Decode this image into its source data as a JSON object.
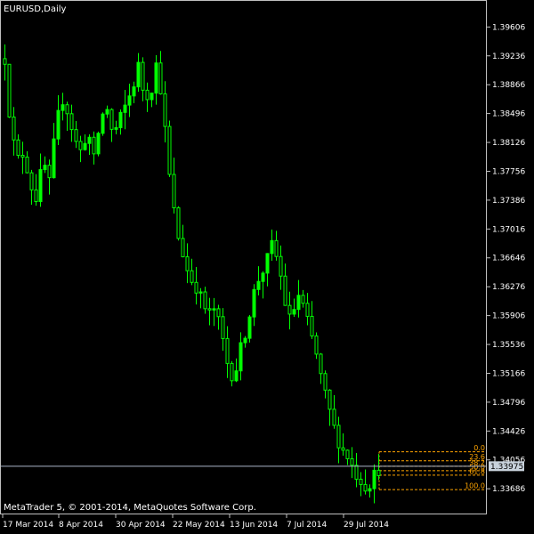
{
  "window": {
    "title": "EURUSD,Daily"
  },
  "footer": {
    "copyright": "MetaTrader 5, © 2001-2014, MetaQuotes Software Corp."
  },
  "colors": {
    "background": "#000000",
    "candle": "#00ff00",
    "axis": "#c0c0c0",
    "text": "#ffffff",
    "fib_line": "#ffa500",
    "fib_text": "#ffa500",
    "price_line": "#aab4c8",
    "price_label_bg": "#c8d2dc",
    "price_label_text": "#000000"
  },
  "chart_data": {
    "type": "candlestick",
    "symbol": "EURUSD",
    "timeframe": "Daily",
    "y_ticks": [
      "1.39606",
      "1.39236",
      "1.38866",
      "1.38496",
      "1.38126",
      "1.37756",
      "1.37386",
      "1.37016",
      "1.36646",
      "1.36276",
      "1.35906",
      "1.35536",
      "1.35166",
      "1.34796",
      "1.34426",
      "1.34056",
      "1.33686"
    ],
    "ylim": [
      1.33357,
      1.39952
    ],
    "x_ticks": [
      "17 Mar 2014",
      "8 Apr 2014",
      "30 Apr 2014",
      "22 May 2014",
      "13 Jun 2014",
      "7 Jul 2014",
      "29 Jul 2014"
    ],
    "current_price": "1.33975",
    "close_path": [
      1.392,
      1.3825,
      1.379,
      1.38,
      1.376,
      1.374,
      1.379,
      1.376,
      1.383,
      1.387,
      1.385,
      1.3815,
      1.38,
      1.383,
      1.379,
      1.384,
      1.386,
      1.382,
      1.384,
      1.386,
      1.388,
      1.391,
      1.387,
      1.388,
      1.392,
      1.3845,
      1.376,
      1.37,
      1.367,
      1.364,
      1.363,
      1.361,
      1.359,
      1.36,
      1.357,
      1.353,
      1.351,
      1.3545,
      1.3575,
      1.3615,
      1.364,
      1.3655,
      1.368,
      1.366,
      1.361,
      1.358,
      1.362,
      1.36,
      1.357,
      1.354,
      1.35,
      1.347,
      1.344,
      1.342,
      1.341,
      1.339,
      1.338,
      1.337,
      1.3385,
      1.3396
    ],
    "fibonacci": {
      "levels": [
        {
          "label": "0.0",
          "price": 1.3416
        },
        {
          "label": "23.6",
          "price": 1.34045
        },
        {
          "label": "38.2",
          "price": 1.33975
        },
        {
          "label": "50.0",
          "price": 1.33918
        },
        {
          "label": "61.8",
          "price": 1.33861
        },
        {
          "label": "100.0",
          "price": 1.33675
        }
      ]
    }
  }
}
